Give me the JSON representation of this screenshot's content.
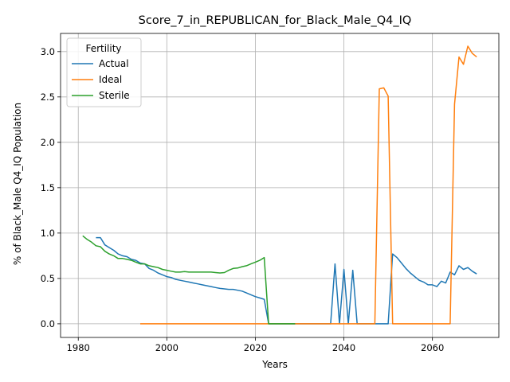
{
  "chart_data": {
    "type": "line",
    "title": "Score_7_in_REPUBLICAN_for_Black_Male_Q4_IQ",
    "xlabel": "Years",
    "ylabel": "% of Black_Male Q4_IQ Population",
    "xlim": [
      1976,
      2075
    ],
    "ylim": [
      -0.15,
      3.2
    ],
    "xticks": [
      1980,
      2000,
      2020,
      2040,
      2060
    ],
    "yticks": [
      0.0,
      0.5,
      1.0,
      1.5,
      2.0,
      2.5,
      3.0
    ],
    "grid": true,
    "legend": {
      "title": "Fertility",
      "placement": "upper-left"
    },
    "series": [
      {
        "name": "Actual",
        "color": "#1f77b4",
        "x": [
          1984,
          1985,
          1986,
          1987,
          1988,
          1989,
          1990,
          1991,
          1992,
          1993,
          1994,
          1995,
          1996,
          1997,
          1998,
          1999,
          2000,
          2001,
          2002,
          2003,
          2004,
          2005,
          2006,
          2007,
          2008,
          2009,
          2010,
          2011,
          2012,
          2013,
          2014,
          2015,
          2016,
          2017,
          2018,
          2019,
          2020,
          2021,
          2022,
          2023,
          2024,
          2025,
          2026,
          2027,
          2028,
          2029,
          2030,
          2031,
          2032,
          2033,
          2034,
          2035,
          2036,
          2037,
          2038,
          2039,
          2040,
          2041,
          2042,
          2043,
          2044,
          2045,
          2046,
          2047,
          2048,
          2049,
          2050,
          2051,
          2052,
          2053,
          2054,
          2055,
          2056,
          2057,
          2058,
          2059,
          2060,
          2061,
          2062,
          2063,
          2064,
          2065,
          2066,
          2067,
          2068,
          2069,
          2070
        ],
        "values": [
          0.95,
          0.95,
          0.87,
          0.84,
          0.81,
          0.77,
          0.75,
          0.74,
          0.71,
          0.7,
          0.67,
          0.66,
          0.61,
          0.59,
          0.56,
          0.54,
          0.52,
          0.51,
          0.49,
          0.48,
          0.47,
          0.46,
          0.45,
          0.44,
          0.43,
          0.42,
          0.41,
          0.4,
          0.39,
          0.385,
          0.38,
          0.38,
          0.37,
          0.36,
          0.34,
          0.32,
          0.3,
          0.285,
          0.27,
          0.0,
          0.0,
          0.0,
          0.0,
          0.0,
          0.0,
          0.0,
          0.0,
          0.0,
          0.0,
          0.0,
          0.0,
          0.0,
          0.0,
          0.0,
          0.66,
          0.0,
          0.6,
          0.0,
          0.59,
          0.0,
          0.0,
          0.0,
          0.0,
          0.0,
          0.0,
          0.0,
          0.0,
          0.77,
          0.73,
          0.67,
          0.61,
          0.56,
          0.52,
          0.48,
          0.46,
          0.43,
          0.43,
          0.41,
          0.47,
          0.45,
          0.57,
          0.54,
          0.64,
          0.6,
          0.62,
          0.58,
          0.55
        ]
      },
      {
        "name": "Ideal",
        "color": "#ff7f0e",
        "x": [
          1994,
          2000,
          2010,
          2020,
          2030,
          2040,
          2047,
          2048,
          2049,
          2050,
          2051,
          2052,
          2060,
          2064,
          2065,
          2066,
          2067,
          2068,
          2069,
          2070
        ],
        "values": [
          0.0,
          0.0,
          0.0,
          0.0,
          0.0,
          0.0,
          0.0,
          2.59,
          2.6,
          2.51,
          0.0,
          0.0,
          0.0,
          0.0,
          2.42,
          2.94,
          2.86,
          3.06,
          2.98,
          2.94
        ]
      },
      {
        "name": "Sterile",
        "color": "#2ca02c",
        "x": [
          1981,
          1982,
          1983,
          1984,
          1985,
          1986,
          1987,
          1988,
          1989,
          1990,
          1991,
          1992,
          1993,
          1994,
          1995,
          1996,
          1997,
          1998,
          1999,
          2000,
          2001,
          2002,
          2003,
          2004,
          2005,
          2006,
          2007,
          2008,
          2009,
          2010,
          2011,
          2012,
          2013,
          2014,
          2015,
          2016,
          2017,
          2018,
          2019,
          2020,
          2021,
          2022,
          2023,
          2024,
          2025,
          2026,
          2027,
          2028,
          2029
        ],
        "values": [
          0.97,
          0.93,
          0.9,
          0.86,
          0.85,
          0.8,
          0.77,
          0.75,
          0.72,
          0.72,
          0.71,
          0.7,
          0.68,
          0.66,
          0.66,
          0.64,
          0.63,
          0.62,
          0.6,
          0.59,
          0.58,
          0.57,
          0.57,
          0.575,
          0.57,
          0.57,
          0.57,
          0.57,
          0.57,
          0.57,
          0.565,
          0.56,
          0.565,
          0.59,
          0.61,
          0.615,
          0.63,
          0.64,
          0.66,
          0.68,
          0.7,
          0.73,
          0.0,
          0.0,
          0.0,
          0.0,
          0.0,
          0.0,
          0.0
        ]
      }
    ]
  }
}
